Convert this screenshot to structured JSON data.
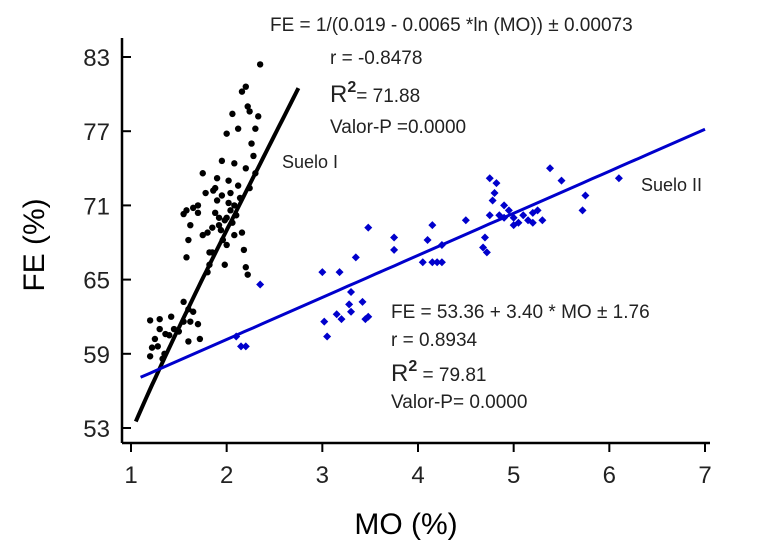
{
  "chart_data": {
    "type": "scatter",
    "xlabel": "MO (%)",
    "ylabel": "FE (%)",
    "xlim": [
      1,
      7
    ],
    "ylim": [
      53,
      83
    ],
    "xticks": [
      1,
      2,
      3,
      4,
      5,
      6,
      7
    ],
    "yticks": [
      53,
      59,
      65,
      71,
      77,
      83
    ],
    "x_tick_labels": [
      "1",
      "2",
      "3",
      "4",
      "5",
      "6",
      "7"
    ],
    "y_tick_labels": [
      "53",
      "59",
      "65",
      "71",
      "77",
      "83"
    ],
    "grid": false,
    "colors": {
      "suelo_i": "#000000",
      "suelo_ii": "#0000cc",
      "axis": "#000000"
    },
    "series": [
      {
        "name": "Suelo I",
        "color": "#000000",
        "points": [
          [
            1.2,
            58.8
          ],
          [
            1.22,
            59.5
          ],
          [
            1.25,
            60.2
          ],
          [
            1.2,
            61.7
          ],
          [
            1.3,
            61.8
          ],
          [
            1.28,
            59.6
          ],
          [
            1.33,
            58.6
          ],
          [
            1.36,
            60.6
          ],
          [
            1.3,
            61.0
          ],
          [
            1.4,
            60.5
          ],
          [
            1.42,
            62.0
          ],
          [
            1.45,
            61.0
          ],
          [
            1.35,
            59.0
          ],
          [
            1.5,
            60.8
          ],
          [
            1.55,
            61.6
          ],
          [
            1.6,
            62.6
          ],
          [
            1.55,
            63.2
          ],
          [
            1.62,
            61.6
          ],
          [
            1.65,
            62.4
          ],
          [
            1.7,
            61.4
          ],
          [
            1.72,
            60.2
          ],
          [
            1.6,
            60.0
          ],
          [
            1.58,
            66.8
          ],
          [
            1.6,
            68.2
          ],
          [
            1.62,
            69.4
          ],
          [
            1.58,
            70.6
          ],
          [
            1.55,
            70.3
          ],
          [
            1.65,
            70.8
          ],
          [
            1.7,
            70.4
          ],
          [
            1.75,
            73.6
          ],
          [
            1.78,
            72.0
          ],
          [
            1.8,
            68.8
          ],
          [
            1.82,
            67.2
          ],
          [
            1.85,
            69.2
          ],
          [
            1.88,
            70.4
          ],
          [
            1.9,
            71.4
          ],
          [
            1.92,
            70.0
          ],
          [
            1.94,
            69.0
          ],
          [
            1.96,
            68.2
          ],
          [
            1.98,
            66.2
          ],
          [
            2.0,
            67.8
          ],
          [
            2.0,
            70.0
          ],
          [
            2.02,
            71.2
          ],
          [
            2.04,
            70.6
          ],
          [
            2.06,
            69.6
          ],
          [
            2.08,
            68.6
          ],
          [
            1.9,
            73.2
          ],
          [
            1.88,
            72.4
          ],
          [
            1.85,
            67.2
          ],
          [
            1.82,
            66.2
          ],
          [
            1.8,
            65.6
          ],
          [
            2.1,
            70.2
          ],
          [
            2.12,
            72.6
          ],
          [
            2.14,
            71.6
          ],
          [
            2.16,
            68.8
          ],
          [
            2.18,
            67.4
          ],
          [
            2.2,
            66.0
          ],
          [
            2.22,
            65.4
          ],
          [
            2.06,
            78.4
          ],
          [
            2.12,
            77.2
          ],
          [
            2.08,
            74.4
          ],
          [
            2.16,
            80.2
          ],
          [
            2.2,
            80.6
          ],
          [
            2.22,
            79.0
          ],
          [
            2.24,
            78.6
          ],
          [
            2.26,
            76.0
          ],
          [
            2.28,
            75.0
          ],
          [
            2.3,
            77.2
          ],
          [
            2.33,
            78.2
          ],
          [
            2.3,
            73.6
          ],
          [
            2.35,
            82.4
          ],
          [
            2.2,
            74.0
          ],
          [
            2.24,
            72.4
          ],
          [
            2.0,
            76.8
          ],
          [
            1.95,
            74.6
          ],
          [
            1.86,
            72.2
          ],
          [
            2.02,
            73.0
          ],
          [
            1.92,
            69.4
          ],
          [
            1.95,
            71.8
          ],
          [
            2.04,
            72.0
          ],
          [
            1.98,
            69.8
          ],
          [
            2.08,
            71.0
          ],
          [
            1.7,
            71.0
          ],
          [
            1.75,
            68.6
          ]
        ]
      },
      {
        "name": "Suelo II",
        "color": "#0000cc",
        "points": [
          [
            2.1,
            60.4
          ],
          [
            2.15,
            59.6
          ],
          [
            2.2,
            59.6
          ],
          [
            2.35,
            64.6
          ],
          [
            3.0,
            65.6
          ],
          [
            3.02,
            61.6
          ],
          [
            3.05,
            60.4
          ],
          [
            3.15,
            62.2
          ],
          [
            3.18,
            65.6
          ],
          [
            3.2,
            61.8
          ],
          [
            3.28,
            63.0
          ],
          [
            3.3,
            62.4
          ],
          [
            3.3,
            64.0
          ],
          [
            3.42,
            63.2
          ],
          [
            3.45,
            61.8
          ],
          [
            3.48,
            62.0
          ],
          [
            3.35,
            66.8
          ],
          [
            3.48,
            69.2
          ],
          [
            3.75,
            68.4
          ],
          [
            3.75,
            67.4
          ],
          [
            4.05,
            66.4
          ],
          [
            4.1,
            68.2
          ],
          [
            4.15,
            66.4
          ],
          [
            4.15,
            69.4
          ],
          [
            4.2,
            66.4
          ],
          [
            4.25,
            67.8
          ],
          [
            4.25,
            66.4
          ],
          [
            4.5,
            69.8
          ],
          [
            4.68,
            67.6
          ],
          [
            4.7,
            68.4
          ],
          [
            4.72,
            67.2
          ],
          [
            4.75,
            70.2
          ],
          [
            4.78,
            71.4
          ],
          [
            4.8,
            72.0
          ],
          [
            4.82,
            72.8
          ],
          [
            4.85,
            70.2
          ],
          [
            4.9,
            70.0
          ],
          [
            4.95,
            70.6
          ],
          [
            5.0,
            69.4
          ],
          [
            5.05,
            69.6
          ],
          [
            5.1,
            70.2
          ],
          [
            5.15,
            69.8
          ],
          [
            5.2,
            70.4
          ],
          [
            5.25,
            70.6
          ],
          [
            5.3,
            69.8
          ],
          [
            5.38,
            74.0
          ],
          [
            5.5,
            73.0
          ],
          [
            5.72,
            70.6
          ],
          [
            5.75,
            71.8
          ],
          [
            6.1,
            73.2
          ],
          [
            4.75,
            73.2
          ],
          [
            5.0,
            70.0
          ],
          [
            4.9,
            71.0
          ],
          [
            5.2,
            69.6
          ]
        ]
      }
    ],
    "fits": [
      {
        "series": "Suelo I",
        "model": "reciprocal-log",
        "a": 0.019,
        "b": 0.0065,
        "x_range": [
          1.05,
          2.75
        ]
      },
      {
        "series": "Suelo II",
        "model": "linear",
        "intercept": 53.36,
        "slope": 3.4,
        "x_range": [
          1.1,
          7.0
        ]
      }
    ],
    "annotations": [
      {
        "id": "ann_suelo1",
        "text": "Suelo I"
      },
      {
        "id": "ann_suelo2",
        "text": "Suelo II"
      }
    ],
    "equation_boxes": {
      "top": {
        "eq": "FE =  1/(0.019 - 0.0065 *ln (MO)) ± 0.00073",
        "r": "r = -0.8478",
        "r2_prefix": "R",
        "r2_sup": "2",
        "r2_value": "= 71.88",
        "p": "Valor-P =0.0000"
      },
      "bottom": {
        "eq": "FE  = 53.36 + 3.40 * MO ± 1.76",
        "r": "r = 0.8934",
        "r2_prefix": "R",
        "r2_sup": "2",
        "r2_value": " = 79.81",
        "p": "Valor-P= 0.0000"
      }
    }
  }
}
